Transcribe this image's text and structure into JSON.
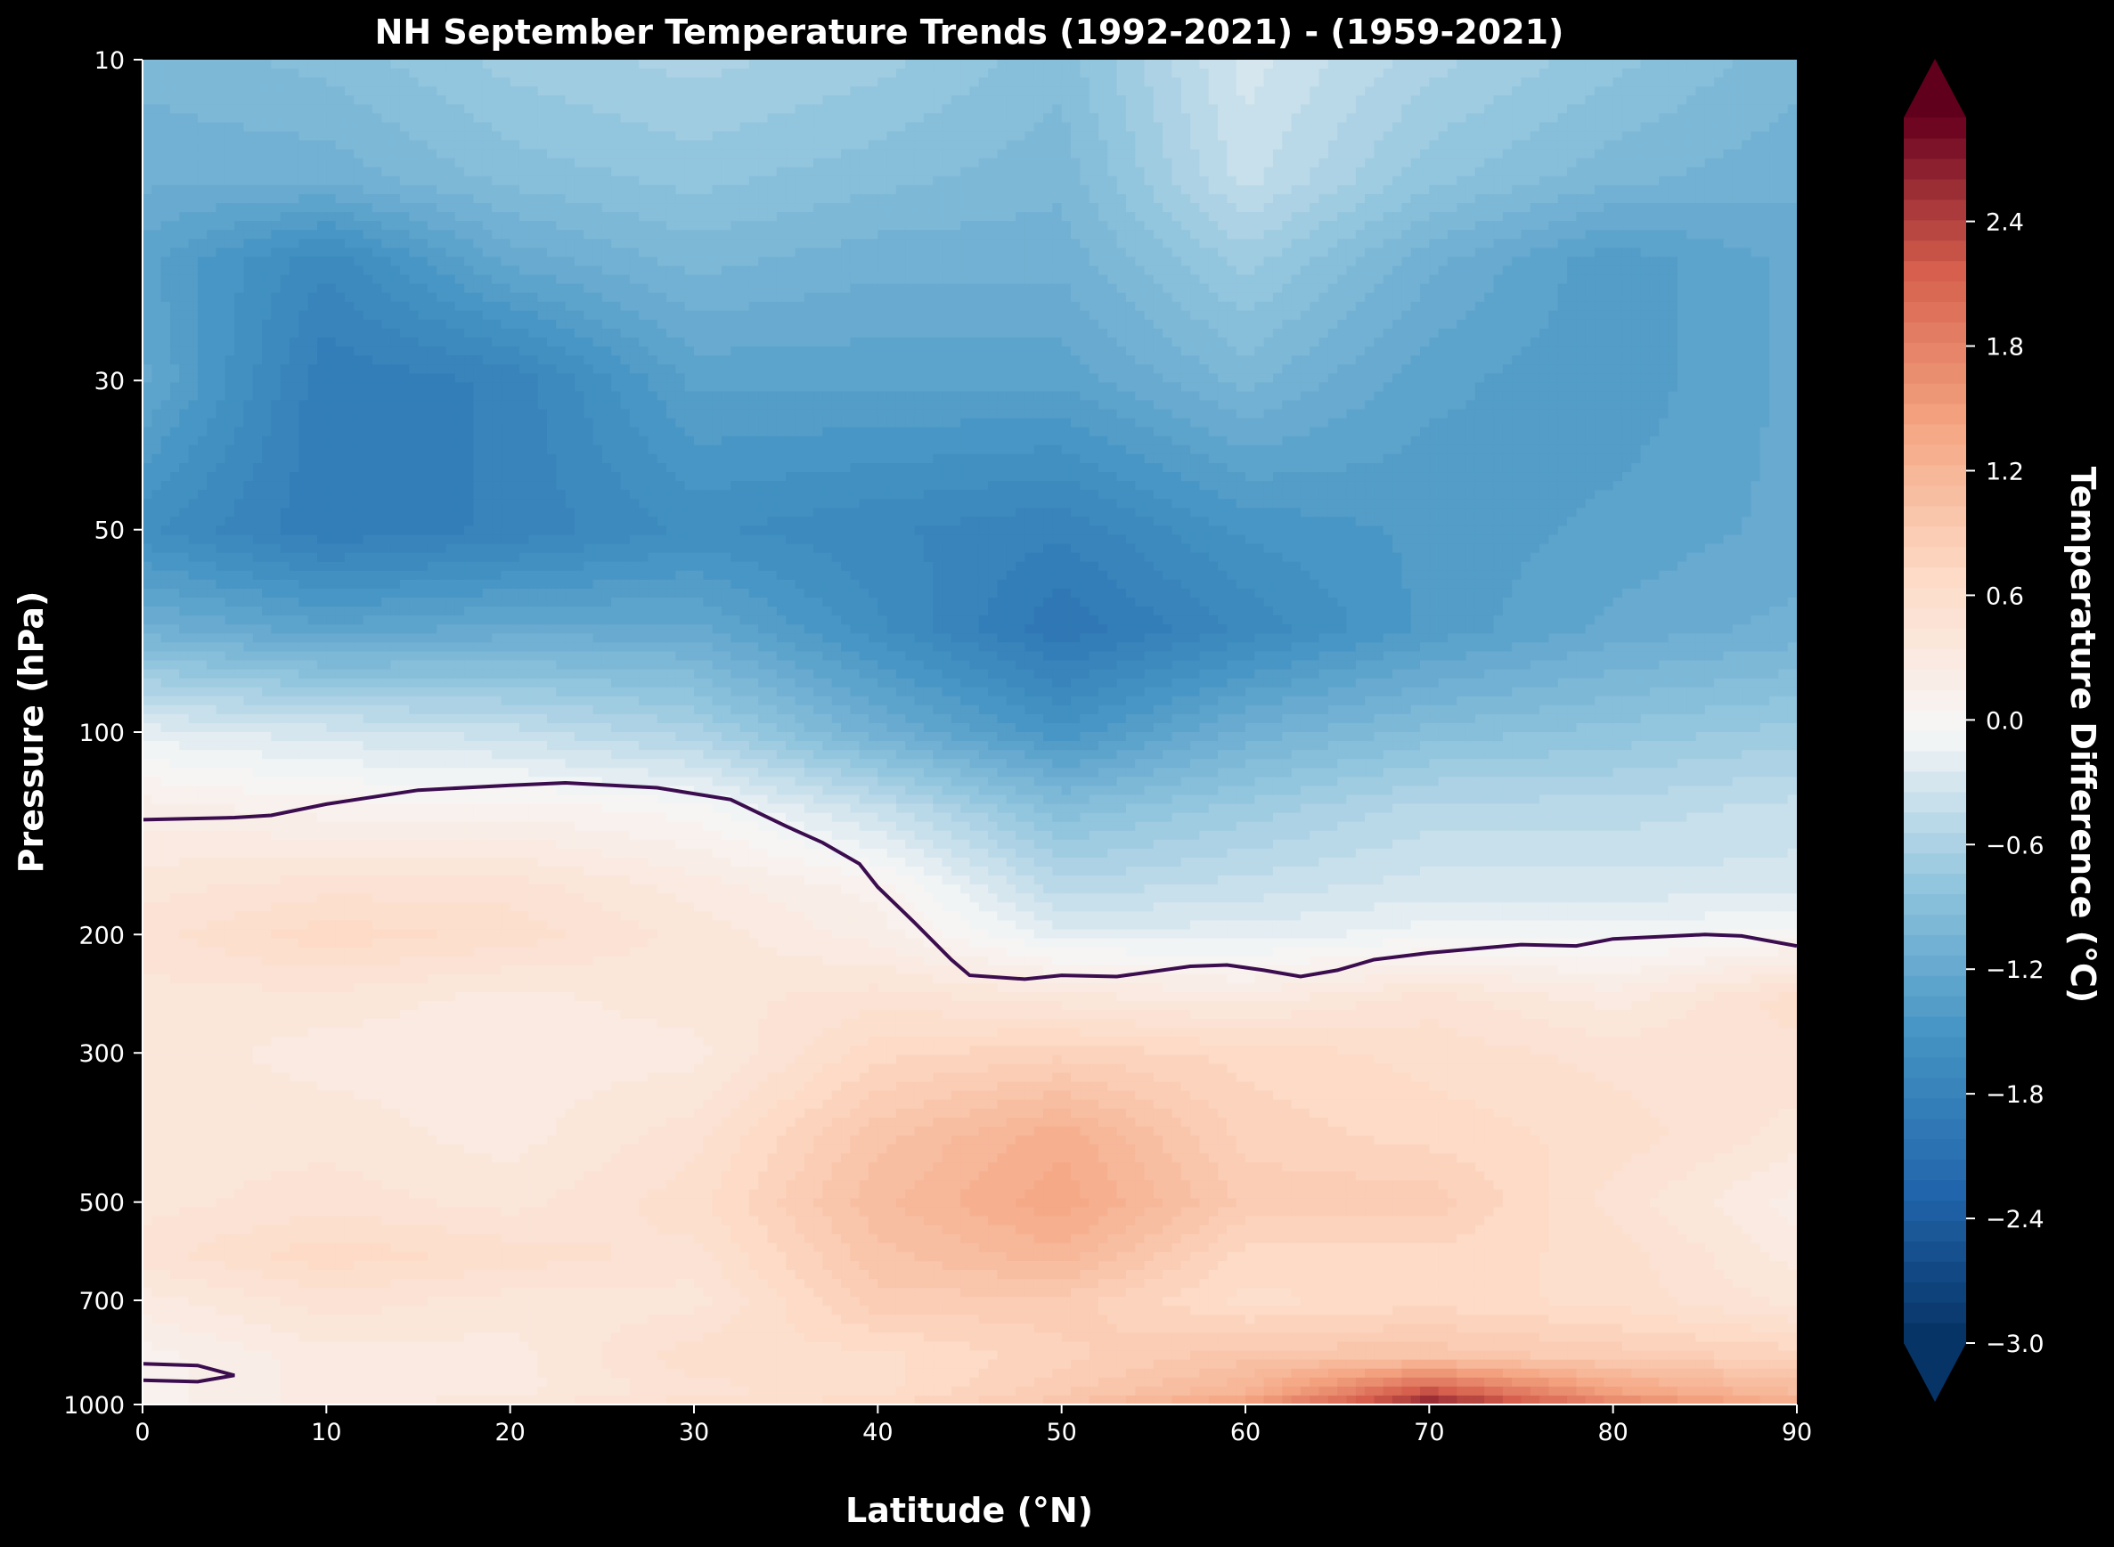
{
  "chart_data": {
    "type": "heatmap",
    "subtype": "filled-contour",
    "title": "NH September Temperature Trends (1992-2021) - (1959-2021)",
    "xlabel": "Latitude (°N)",
    "ylabel": "Pressure (hPa)",
    "xlim": [
      0,
      90
    ],
    "ylim": [
      1000,
      10
    ],
    "yscale": "log",
    "xticks": [
      0,
      10,
      20,
      30,
      40,
      50,
      60,
      70,
      80,
      90
    ],
    "yticks": [
      10,
      30,
      50,
      100,
      200,
      300,
      500,
      700,
      1000
    ],
    "grid": false,
    "colormap": "RdBu_r",
    "colorbar": {
      "label": "Temperature Difference (°C)",
      "range": [
        -3.0,
        2.9
      ],
      "extend": "both",
      "ticks": [
        -3.0,
        -2.4,
        -1.8,
        -1.2,
        -0.6,
        0.0,
        0.6,
        1.2,
        1.8,
        2.4
      ],
      "tick_labels": [
        "−3.0",
        "−2.4",
        "−1.8",
        "−1.2",
        "−0.6",
        "0.0",
        "0.6",
        "1.2",
        "1.8",
        "2.4"
      ]
    },
    "zero_contour": {
      "color": "#3b0d4f",
      "upper": [
        [
          0,
          135
        ],
        [
          5,
          134
        ],
        [
          7,
          133
        ],
        [
          10,
          128
        ],
        [
          15,
          122
        ],
        [
          20,
          120
        ],
        [
          23,
          119
        ],
        [
          28,
          121
        ],
        [
          32,
          126
        ],
        [
          35,
          138
        ],
        [
          37,
          146
        ],
        [
          39,
          157
        ],
        [
          40,
          170
        ],
        [
          42,
          192
        ],
        [
          44,
          218
        ],
        [
          45,
          230
        ],
        [
          48,
          233
        ],
        [
          50,
          230
        ],
        [
          53,
          231
        ],
        [
          57,
          223
        ],
        [
          59,
          222
        ],
        [
          61,
          226
        ],
        [
          63,
          231
        ],
        [
          65,
          226
        ],
        [
          67,
          218
        ],
        [
          70,
          213
        ],
        [
          75,
          207
        ],
        [
          78,
          208
        ],
        [
          80,
          203
        ],
        [
          85,
          200
        ],
        [
          87,
          201
        ],
        [
          90,
          208
        ]
      ],
      "lower": [
        [
          0,
          870
        ],
        [
          3,
          875
        ],
        [
          5,
          905
        ],
        [
          3,
          925
        ],
        [
          0,
          920
        ]
      ]
    },
    "grid_lat": [
      0,
      10,
      20,
      30,
      40,
      50,
      60,
      70,
      80,
      90
    ],
    "grid_pressure": [
      10,
      15,
      20,
      30,
      50,
      70,
      100,
      130,
      170,
      200,
      250,
      300,
      400,
      500,
      600,
      700,
      850,
      950,
      1000
    ],
    "values": [
      [
        -1.0,
        -0.9,
        -0.7,
        -0.6,
        -0.7,
        -0.9,
        -0.3,
        -0.6,
        -0.8,
        -1.0
      ],
      [
        -1.1,
        -1.1,
        -0.9,
        -0.8,
        -0.9,
        -1.0,
        -0.4,
        -0.8,
        -1.0,
        -1.1
      ],
      [
        -1.3,
        -1.7,
        -1.2,
        -1.0,
        -1.1,
        -1.1,
        -0.7,
        -1.1,
        -1.4,
        -1.2
      ],
      [
        -1.2,
        -1.9,
        -1.8,
        -1.3,
        -1.3,
        -1.3,
        -1.0,
        -1.3,
        -1.4,
        -1.2
      ],
      [
        -1.6,
        -1.9,
        -1.8,
        -1.6,
        -1.7,
        -1.8,
        -1.5,
        -1.4,
        -1.3,
        -1.2
      ],
      [
        -1.1,
        -1.3,
        -1.2,
        -1.2,
        -1.6,
        -2.0,
        -1.7,
        -1.4,
        -1.2,
        -1.1
      ],
      [
        -0.2,
        -0.3,
        -0.4,
        -0.6,
        -1.1,
        -1.5,
        -1.1,
        -0.9,
        -0.8,
        -0.7
      ],
      [
        0.2,
        0.1,
        0.1,
        -0.0,
        -0.4,
        -0.9,
        -0.7,
        -0.5,
        -0.5,
        -0.4
      ],
      [
        0.4,
        0.5,
        0.5,
        0.3,
        0.1,
        -0.5,
        -0.4,
        -0.3,
        -0.3,
        -0.3
      ],
      [
        0.5,
        0.7,
        0.6,
        0.4,
        0.2,
        -0.2,
        -0.2,
        -0.1,
        -0.1,
        0.0
      ],
      [
        0.4,
        0.4,
        0.3,
        0.4,
        0.5,
        0.4,
        0.3,
        0.5,
        0.3,
        0.6
      ],
      [
        0.4,
        0.3,
        0.3,
        0.3,
        0.7,
        0.8,
        0.7,
        0.6,
        0.5,
        0.5
      ],
      [
        0.4,
        0.4,
        0.3,
        0.5,
        1.0,
        1.3,
        0.8,
        0.7,
        0.6,
        0.4
      ],
      [
        0.4,
        0.5,
        0.4,
        0.6,
        1.1,
        1.4,
        0.9,
        0.9,
        0.5,
        0.2
      ],
      [
        0.5,
        0.7,
        0.6,
        0.5,
        1.0,
        1.2,
        0.7,
        0.7,
        0.6,
        0.3
      ],
      [
        0.3,
        0.5,
        0.4,
        0.4,
        0.9,
        0.9,
        0.6,
        0.7,
        0.6,
        0.4
      ],
      [
        0.1,
        0.3,
        0.3,
        0.6,
        0.6,
        0.8,
        1.0,
        1.0,
        0.9,
        0.8
      ],
      [
        0.1,
        0.3,
        0.3,
        0.5,
        0.6,
        0.9,
        1.2,
        2.2,
        1.4,
        1.1
      ],
      [
        0.1,
        0.3,
        0.4,
        0.6,
        0.7,
        1.0,
        1.5,
        2.7,
        1.8,
        1.3
      ]
    ]
  }
}
